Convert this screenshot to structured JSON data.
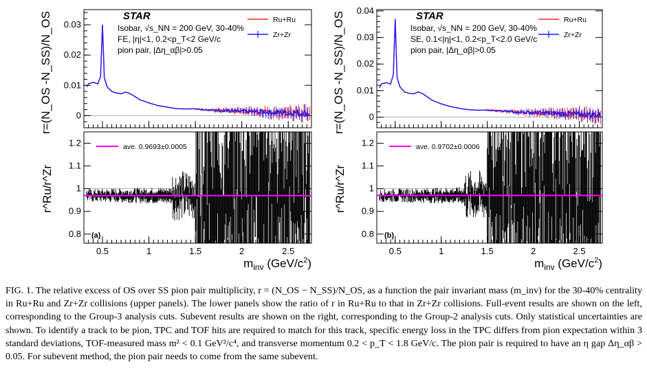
{
  "figure": {
    "x_axis_title": "m_inv (GeV/c²)",
    "x_ticks": [
      "0.5",
      "1",
      "1.5",
      "2",
      "2.5"
    ],
    "upper_y_title": "r=(N_OS -N_SS)/N_OS",
    "lower_y_title": "r^Ru/r^Zr",
    "lower_y_ticks": [
      "0.8",
      "0.9",
      "1",
      "1.1",
      "1.2"
    ],
    "colors": {
      "ru": "#ff2020",
      "zr": "#1a1aff",
      "ave": "#ff00ff",
      "ratio": "#000000",
      "zero": "#b0b0b0"
    }
  },
  "panels": [
    {
      "id": "a",
      "upper_y_ticks": [
        "0",
        "0.01",
        "0.02",
        "0.03"
      ],
      "upper_ylim": [
        -0.004,
        0.035
      ],
      "upper_yticks_values": [
        0,
        0.01,
        0.02,
        0.03
      ],
      "star": "STAR",
      "info_lines": [
        "Isobar, √s_NN = 200 GeV, 30-40%",
        "FE, |η|<1, 0.2<p_T<2 GeV/c",
        "pion pair, |Δη_αβ|>0.05"
      ],
      "legend": [
        "Ru+Ru",
        "Zr+Zr"
      ],
      "ave_label": "ave. 0.9693±0.0005",
      "ave_value": 0.9693,
      "panel_label": "(a)"
    },
    {
      "id": "b",
      "upper_y_ticks": [
        "0",
        "0.01",
        "0.02",
        "0.03",
        "0.04"
      ],
      "upper_ylim": [
        -0.004,
        0.0405
      ],
      "upper_yticks_values": [
        0,
        0.01,
        0.02,
        0.03,
        0.04
      ],
      "star": "STAR",
      "info_lines": [
        "Isobar, √s_NN = 200 GeV, 30-40%",
        "SE, 0.1<|η|<1, 0.2<p_T<2.0 GeV/c",
        "pion pair, |Δη_αβ|>0.05"
      ],
      "legend": [
        "Ru+Ru",
        "Zr+Zr"
      ],
      "ave_label": "ave. 0.9702±0.0006",
      "ave_value": 0.9702,
      "panel_label": "(b)"
    }
  ],
  "chart_data": [
    {
      "type": "line",
      "panel": "a-upper",
      "xlabel": "m_inv (GeV/c²)",
      "ylabel": "r=(N_OS -N_SS)/N_OS",
      "xlim": [
        0.3,
        2.75
      ],
      "ylim": [
        -0.004,
        0.035
      ],
      "x": [
        0.3,
        0.35,
        0.4,
        0.45,
        0.48,
        0.5,
        0.52,
        0.55,
        0.6,
        0.65,
        0.7,
        0.75,
        0.8,
        0.85,
        0.9,
        1.0,
        1.1,
        1.2,
        1.3,
        1.4,
        1.5,
        1.6,
        1.7,
        1.8,
        2.0,
        2.2,
        2.4,
        2.6,
        2.75
      ],
      "series": [
        {
          "name": "Ru+Ru",
          "values": [
            0.008,
            0.0105,
            0.011,
            0.0105,
            0.013,
            0.03,
            0.0125,
            0.0095,
            0.008,
            0.0075,
            0.0072,
            0.0078,
            0.0072,
            0.0063,
            0.0053,
            0.0042,
            0.0033,
            0.0028,
            0.0023,
            0.0022,
            0.0023,
            0.002,
            0.0018,
            0.0017,
            0.0014,
            0.0012,
            0.001,
            0.0009,
            0.0008
          ]
        },
        {
          "name": "Zr+Zr",
          "values": [
            0.008,
            0.0105,
            0.011,
            0.0105,
            0.013,
            0.03,
            0.0125,
            0.0095,
            0.008,
            0.0075,
            0.0072,
            0.0078,
            0.0072,
            0.0063,
            0.0053,
            0.0042,
            0.0033,
            0.0028,
            0.0023,
            0.0022,
            0.0023,
            0.002,
            0.0018,
            0.0017,
            0.0014,
            0.0012,
            0.001,
            0.0009,
            0.0008
          ]
        }
      ]
    },
    {
      "type": "line",
      "panel": "a-lower",
      "xlabel": "m_inv (GeV/c²)",
      "ylabel": "r^Ru/r^Zr",
      "xlim": [
        0.3,
        2.75
      ],
      "ylim": [
        0.76,
        1.25
      ],
      "series": [
        {
          "name": "ave. 0.9693±0.0005",
          "x": [
            0.3,
            2.75
          ],
          "values": [
            0.9693,
            0.9693
          ]
        },
        {
          "name": "",
          "x_range": [
            0.3,
            2.75
          ],
          "values_description_note": "",
          "values": [
            0.97,
            0.98,
            0.96,
            0.97,
            0.975,
            0.965,
            0.97,
            0.97,
            0.968,
            0.972,
            0.97,
            0.965,
            0.975,
            0.97,
            0.968,
            0.97,
            0.98,
            0.96,
            0.975,
            0.97,
            0.99,
            0.95,
            0.97,
            1.0,
            0.94,
            1.05,
            0.9,
            1.1,
            0.85,
            1.2,
            0.8,
            1.15,
            0.85,
            1.2,
            0.78,
            1.2,
            0.8,
            1.2,
            0.78,
            1.2
          ]
        }
      ]
    },
    {
      "type": "line",
      "panel": "b-upper",
      "xlabel": "m_inv (GeV/c²)",
      "ylabel": "r=(N_OS -N_SS)/N_OS",
      "xlim": [
        0.3,
        2.75
      ],
      "ylim": [
        -0.004,
        0.0405
      ],
      "x": [
        0.3,
        0.35,
        0.4,
        0.45,
        0.48,
        0.5,
        0.52,
        0.55,
        0.6,
        0.65,
        0.7,
        0.75,
        0.8,
        0.85,
        0.9,
        1.0,
        1.1,
        1.2,
        1.3,
        1.4,
        1.5,
        1.6,
        1.7,
        1.8,
        2.0,
        2.2,
        2.4,
        2.6,
        2.75
      ],
      "series": [
        {
          "name": "Ru+Ru",
          "values": [
            0.009,
            0.0125,
            0.013,
            0.0125,
            0.016,
            0.037,
            0.015,
            0.0115,
            0.0095,
            0.009,
            0.0088,
            0.0095,
            0.0088,
            0.0076,
            0.0064,
            0.005,
            0.004,
            0.0033,
            0.0028,
            0.0026,
            0.0027,
            0.0024,
            0.0022,
            0.002,
            0.0017,
            0.0015,
            0.0012,
            0.001,
            0.0008
          ]
        },
        {
          "name": "Zr+Zr",
          "values": [
            0.009,
            0.0125,
            0.013,
            0.0125,
            0.016,
            0.037,
            0.015,
            0.0115,
            0.0095,
            0.009,
            0.0088,
            0.0095,
            0.0088,
            0.0076,
            0.0064,
            0.005,
            0.004,
            0.0033,
            0.0028,
            0.0026,
            0.0027,
            0.0024,
            0.0022,
            0.002,
            0.0017,
            0.0015,
            0.0012,
            0.001,
            0.0008
          ]
        }
      ]
    },
    {
      "type": "line",
      "panel": "b-lower",
      "xlabel": "m_inv (GeV/c²)",
      "ylabel": "r^Ru/r^Zr",
      "xlim": [
        0.3,
        2.75
      ],
      "ylim": [
        0.76,
        1.25
      ],
      "series": [
        {
          "name": "ave. 0.9702±0.0006",
          "x": [
            0.3,
            2.75
          ],
          "values": [
            0.9702,
            0.9702
          ]
        },
        {
          "name": "",
          "x_range": [
            0.3,
            2.75
          ],
          "values": [
            0.97,
            0.975,
            0.965,
            0.97,
            0.972,
            0.968,
            0.97,
            0.975,
            0.965,
            0.97,
            0.972,
            0.968,
            0.97,
            0.98,
            0.96,
            0.97,
            0.975,
            0.965,
            0.99,
            0.95,
            1.0,
            0.94,
            1.05,
            0.9,
            1.1,
            0.85,
            1.15,
            0.8,
            1.2,
            0.78,
            1.2,
            0.8,
            1.2,
            0.78,
            1.2,
            0.8,
            1.2,
            0.78,
            1.2,
            0.8
          ]
        }
      ]
    }
  ],
  "caption": {
    "text": "FIG. 1. The relative excess of OS over SS pion pair multiplicity, r = (N_OS − N_SS)/N_OS, as a function the pair invariant mass (m_inv) for the 30-40% centrality in Ru+Ru and Zr+Zr collisions (upper panels). The lower panels show the ratio of r in Ru+Ru to that in Zr+Zr collisions. Full-event results are shown on the left, corresponding to the Group-3 analysis cuts. Subevent results are shown on the right, corresponding to the Group-2 analysis cuts. Only statistical uncertainties are shown. To identify a track to be pion, TPC and TOF hits are required to match for this track, specific energy loss in the TPC differs from pion expectation within 3 standard deviations, TOF-measured mass m² < 0.1 GeV²/c⁴, and transverse momentum 0.2 < p_T < 1.8 GeV/c. The pion pair is required to have an η gap Δη_αβ > 0.05. For subevent method, the pion pair needs to come from the same subevent."
  }
}
